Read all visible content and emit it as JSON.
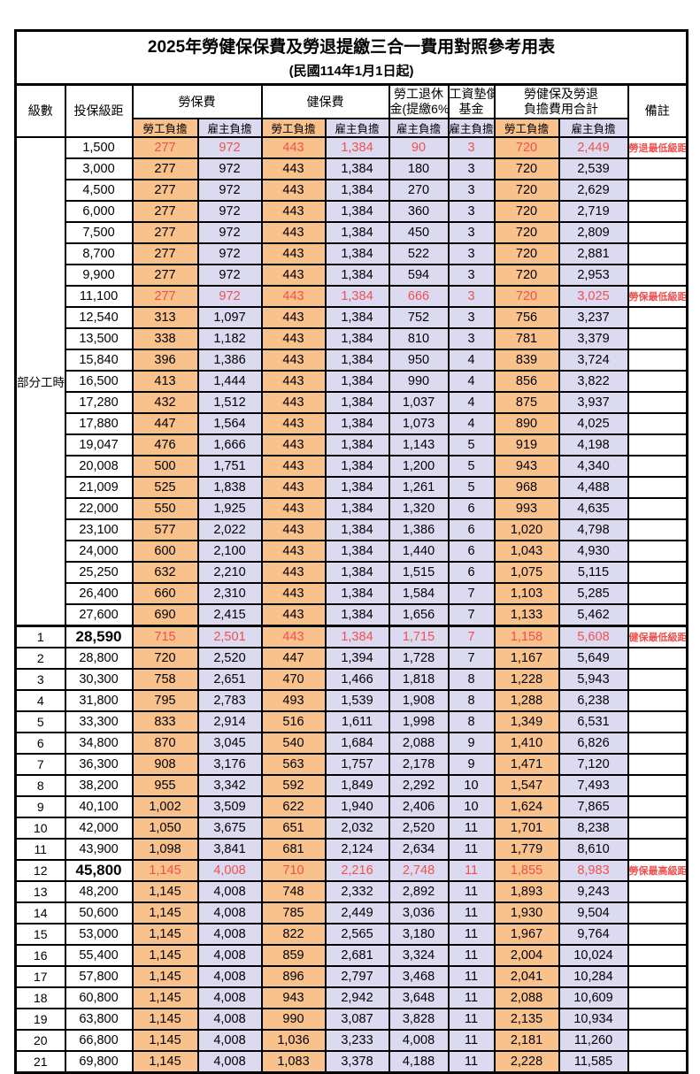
{
  "table": {
    "title": "2025年勞健保保費及勞退提繳三合一費用對照參考用表",
    "subtitle": "(民國114年1月1日起)",
    "colors": {
      "employee_cell_bg": "#F9C18C",
      "employer_cell_bg": "#DCDAF1",
      "highlight_text": "#F0504E",
      "border": "#000000"
    },
    "headers": {
      "level": "級數",
      "bracket": "投保級距",
      "labor_group": "勞保費",
      "health_group": "健保費",
      "pension_line1": "勞工退休",
      "pension_line2": "金(提繳6%)",
      "wage_fund_line1": "工資墊償",
      "wage_fund_line2": "基金",
      "total_line1": "勞健保及勞退",
      "total_line2": "負擔費用合計",
      "remark": "備註",
      "employee": "勞工負擔",
      "employer": "雇主負擔"
    },
    "parttime_label": "部分工時",
    "parttime_rowspan": 23,
    "rows": [
      {
        "group": "parttime",
        "level": "",
        "bracket": "1,500",
        "values": [
          "277",
          "972",
          "443",
          "1,384",
          "90",
          "3",
          "720",
          "2,449"
        ],
        "remark": "勞退最低級距",
        "red": true,
        "big": false
      },
      {
        "group": "parttime",
        "level": "",
        "bracket": "3,000",
        "values": [
          "277",
          "972",
          "443",
          "1,384",
          "180",
          "3",
          "720",
          "2,539"
        ],
        "remark": "",
        "red": false,
        "big": false
      },
      {
        "group": "parttime",
        "level": "",
        "bracket": "4,500",
        "values": [
          "277",
          "972",
          "443",
          "1,384",
          "270",
          "3",
          "720",
          "2,629"
        ],
        "remark": "",
        "red": false,
        "big": false
      },
      {
        "group": "parttime",
        "level": "",
        "bracket": "6,000",
        "values": [
          "277",
          "972",
          "443",
          "1,384",
          "360",
          "3",
          "720",
          "2,719"
        ],
        "remark": "",
        "red": false,
        "big": false
      },
      {
        "group": "parttime",
        "level": "",
        "bracket": "7,500",
        "values": [
          "277",
          "972",
          "443",
          "1,384",
          "450",
          "3",
          "720",
          "2,809"
        ],
        "remark": "",
        "red": false,
        "big": false
      },
      {
        "group": "parttime",
        "level": "",
        "bracket": "8,700",
        "values": [
          "277",
          "972",
          "443",
          "1,384",
          "522",
          "3",
          "720",
          "2,881"
        ],
        "remark": "",
        "red": false,
        "big": false
      },
      {
        "group": "parttime",
        "level": "",
        "bracket": "9,900",
        "values": [
          "277",
          "972",
          "443",
          "1,384",
          "594",
          "3",
          "720",
          "2,953"
        ],
        "remark": "",
        "red": false,
        "big": false
      },
      {
        "group": "parttime",
        "level": "",
        "bracket": "11,100",
        "values": [
          "277",
          "972",
          "443",
          "1,384",
          "666",
          "3",
          "720",
          "3,025"
        ],
        "remark": "勞保最低級距",
        "red": true,
        "big": false
      },
      {
        "group": "parttime",
        "level": "",
        "bracket": "12,540",
        "values": [
          "313",
          "1,097",
          "443",
          "1,384",
          "752",
          "3",
          "756",
          "3,237"
        ],
        "remark": "",
        "red": false,
        "big": false
      },
      {
        "group": "parttime",
        "level": "",
        "bracket": "13,500",
        "values": [
          "338",
          "1,182",
          "443",
          "1,384",
          "810",
          "3",
          "781",
          "3,379"
        ],
        "remark": "",
        "red": false,
        "big": false
      },
      {
        "group": "parttime",
        "level": "",
        "bracket": "15,840",
        "values": [
          "396",
          "1,386",
          "443",
          "1,384",
          "950",
          "4",
          "839",
          "3,724"
        ],
        "remark": "",
        "red": false,
        "big": false
      },
      {
        "group": "parttime",
        "level": "",
        "bracket": "16,500",
        "values": [
          "413",
          "1,444",
          "443",
          "1,384",
          "990",
          "4",
          "856",
          "3,822"
        ],
        "remark": "",
        "red": false,
        "big": false
      },
      {
        "group": "parttime",
        "level": "",
        "bracket": "17,280",
        "values": [
          "432",
          "1,512",
          "443",
          "1,384",
          "1,037",
          "4",
          "875",
          "3,937"
        ],
        "remark": "",
        "red": false,
        "big": false
      },
      {
        "group": "parttime",
        "level": "",
        "bracket": "17,880",
        "values": [
          "447",
          "1,564",
          "443",
          "1,384",
          "1,073",
          "4",
          "890",
          "4,025"
        ],
        "remark": "",
        "red": false,
        "big": false
      },
      {
        "group": "parttime",
        "level": "",
        "bracket": "19,047",
        "values": [
          "476",
          "1,666",
          "443",
          "1,384",
          "1,143",
          "5",
          "919",
          "4,198"
        ],
        "remark": "",
        "red": false,
        "big": false
      },
      {
        "group": "parttime",
        "level": "",
        "bracket": "20,008",
        "values": [
          "500",
          "1,751",
          "443",
          "1,384",
          "1,200",
          "5",
          "943",
          "4,340"
        ],
        "remark": "",
        "red": false,
        "big": false
      },
      {
        "group": "parttime",
        "level": "",
        "bracket": "21,009",
        "values": [
          "525",
          "1,838",
          "443",
          "1,384",
          "1,261",
          "5",
          "968",
          "4,488"
        ],
        "remark": "",
        "red": false,
        "big": false
      },
      {
        "group": "parttime",
        "level": "",
        "bracket": "22,000",
        "values": [
          "550",
          "1,925",
          "443",
          "1,384",
          "1,320",
          "6",
          "993",
          "4,635"
        ],
        "remark": "",
        "red": false,
        "big": false
      },
      {
        "group": "parttime",
        "level": "",
        "bracket": "23,100",
        "values": [
          "577",
          "2,022",
          "443",
          "1,384",
          "1,386",
          "6",
          "1,020",
          "4,798"
        ],
        "remark": "",
        "red": false,
        "big": false
      },
      {
        "group": "parttime",
        "level": "",
        "bracket": "24,000",
        "values": [
          "600",
          "2,100",
          "443",
          "1,384",
          "1,440",
          "6",
          "1,043",
          "4,930"
        ],
        "remark": "",
        "red": false,
        "big": false
      },
      {
        "group": "parttime",
        "level": "",
        "bracket": "25,250",
        "values": [
          "632",
          "2,210",
          "443",
          "1,384",
          "1,515",
          "6",
          "1,075",
          "5,115"
        ],
        "remark": "",
        "red": false,
        "big": false
      },
      {
        "group": "parttime",
        "level": "",
        "bracket": "26,400",
        "values": [
          "660",
          "2,310",
          "443",
          "1,384",
          "1,584",
          "7",
          "1,103",
          "5,285"
        ],
        "remark": "",
        "red": false,
        "big": false
      },
      {
        "group": "parttime",
        "level": "",
        "bracket": "27,600",
        "values": [
          "690",
          "2,415",
          "443",
          "1,384",
          "1,656",
          "7",
          "1,133",
          "5,462"
        ],
        "remark": "",
        "red": false,
        "big": false
      },
      {
        "group": "",
        "level": "1",
        "bracket": "28,590",
        "values": [
          "715",
          "2,501",
          "443",
          "1,384",
          "1,715",
          "7",
          "1,158",
          "5,608"
        ],
        "remark": "健保最低級距",
        "red": true,
        "big": true,
        "section_start": true
      },
      {
        "group": "",
        "level": "2",
        "bracket": "28,800",
        "values": [
          "720",
          "2,520",
          "447",
          "1,394",
          "1,728",
          "7",
          "1,167",
          "5,649"
        ],
        "remark": "",
        "red": false,
        "big": false
      },
      {
        "group": "",
        "level": "3",
        "bracket": "30,300",
        "values": [
          "758",
          "2,651",
          "470",
          "1,466",
          "1,818",
          "8",
          "1,228",
          "5,943"
        ],
        "remark": "",
        "red": false,
        "big": false
      },
      {
        "group": "",
        "level": "4",
        "bracket": "31,800",
        "values": [
          "795",
          "2,783",
          "493",
          "1,539",
          "1,908",
          "8",
          "1,288",
          "6,238"
        ],
        "remark": "",
        "red": false,
        "big": false
      },
      {
        "group": "",
        "level": "5",
        "bracket": "33,300",
        "values": [
          "833",
          "2,914",
          "516",
          "1,611",
          "1,998",
          "8",
          "1,349",
          "6,531"
        ],
        "remark": "",
        "red": false,
        "big": false
      },
      {
        "group": "",
        "level": "6",
        "bracket": "34,800",
        "values": [
          "870",
          "3,045",
          "540",
          "1,684",
          "2,088",
          "9",
          "1,410",
          "6,826"
        ],
        "remark": "",
        "red": false,
        "big": false
      },
      {
        "group": "",
        "level": "7",
        "bracket": "36,300",
        "values": [
          "908",
          "3,176",
          "563",
          "1,757",
          "2,178",
          "9",
          "1,471",
          "7,120"
        ],
        "remark": "",
        "red": false,
        "big": false
      },
      {
        "group": "",
        "level": "8",
        "bracket": "38,200",
        "values": [
          "955",
          "3,342",
          "592",
          "1,849",
          "2,292",
          "10",
          "1,547",
          "7,493"
        ],
        "remark": "",
        "red": false,
        "big": false
      },
      {
        "group": "",
        "level": "9",
        "bracket": "40,100",
        "values": [
          "1,002",
          "3,509",
          "622",
          "1,940",
          "2,406",
          "10",
          "1,624",
          "7,865"
        ],
        "remark": "",
        "red": false,
        "big": false
      },
      {
        "group": "",
        "level": "10",
        "bracket": "42,000",
        "values": [
          "1,050",
          "3,675",
          "651",
          "2,032",
          "2,520",
          "11",
          "1,701",
          "8,238"
        ],
        "remark": "",
        "red": false,
        "big": false
      },
      {
        "group": "",
        "level": "11",
        "bracket": "43,900",
        "values": [
          "1,098",
          "3,841",
          "681",
          "2,124",
          "2,634",
          "11",
          "1,779",
          "8,610"
        ],
        "remark": "",
        "red": false,
        "big": false
      },
      {
        "group": "",
        "level": "12",
        "bracket": "45,800",
        "values": [
          "1,145",
          "4,008",
          "710",
          "2,216",
          "2,748",
          "11",
          "1,855",
          "8,983"
        ],
        "remark": "勞保最高級距",
        "red": true,
        "big": true
      },
      {
        "group": "",
        "level": "13",
        "bracket": "48,200",
        "values": [
          "1,145",
          "4,008",
          "748",
          "2,332",
          "2,892",
          "11",
          "1,893",
          "9,243"
        ],
        "remark": "",
        "red": false,
        "big": false
      },
      {
        "group": "",
        "level": "14",
        "bracket": "50,600",
        "values": [
          "1,145",
          "4,008",
          "785",
          "2,449",
          "3,036",
          "11",
          "1,930",
          "9,504"
        ],
        "remark": "",
        "red": false,
        "big": false
      },
      {
        "group": "",
        "level": "15",
        "bracket": "53,000",
        "values": [
          "1,145",
          "4,008",
          "822",
          "2,565",
          "3,180",
          "11",
          "1,967",
          "9,764"
        ],
        "remark": "",
        "red": false,
        "big": false
      },
      {
        "group": "",
        "level": "16",
        "bracket": "55,400",
        "values": [
          "1,145",
          "4,008",
          "859",
          "2,681",
          "3,324",
          "11",
          "2,004",
          "10,024"
        ],
        "remark": "",
        "red": false,
        "big": false
      },
      {
        "group": "",
        "level": "17",
        "bracket": "57,800",
        "values": [
          "1,145",
          "4,008",
          "896",
          "2,797",
          "3,468",
          "11",
          "2,041",
          "10,284"
        ],
        "remark": "",
        "red": false,
        "big": false
      },
      {
        "group": "",
        "level": "18",
        "bracket": "60,800",
        "values": [
          "1,145",
          "4,008",
          "943",
          "2,942",
          "3,648",
          "11",
          "2,088",
          "10,609"
        ],
        "remark": "",
        "red": false,
        "big": false
      },
      {
        "group": "",
        "level": "19",
        "bracket": "63,800",
        "values": [
          "1,145",
          "4,008",
          "990",
          "3,087",
          "3,828",
          "11",
          "2,135",
          "10,934"
        ],
        "remark": "",
        "red": false,
        "big": false
      },
      {
        "group": "",
        "level": "20",
        "bracket": "66,800",
        "values": [
          "1,145",
          "4,008",
          "1,036",
          "3,233",
          "4,008",
          "11",
          "2,181",
          "11,260"
        ],
        "remark": "",
        "red": false,
        "big": false
      },
      {
        "group": "",
        "level": "21",
        "bracket": "69,800",
        "values": [
          "1,145",
          "4,008",
          "1,083",
          "3,378",
          "4,188",
          "11",
          "2,228",
          "11,585"
        ],
        "remark": "",
        "red": false,
        "big": false
      }
    ]
  }
}
